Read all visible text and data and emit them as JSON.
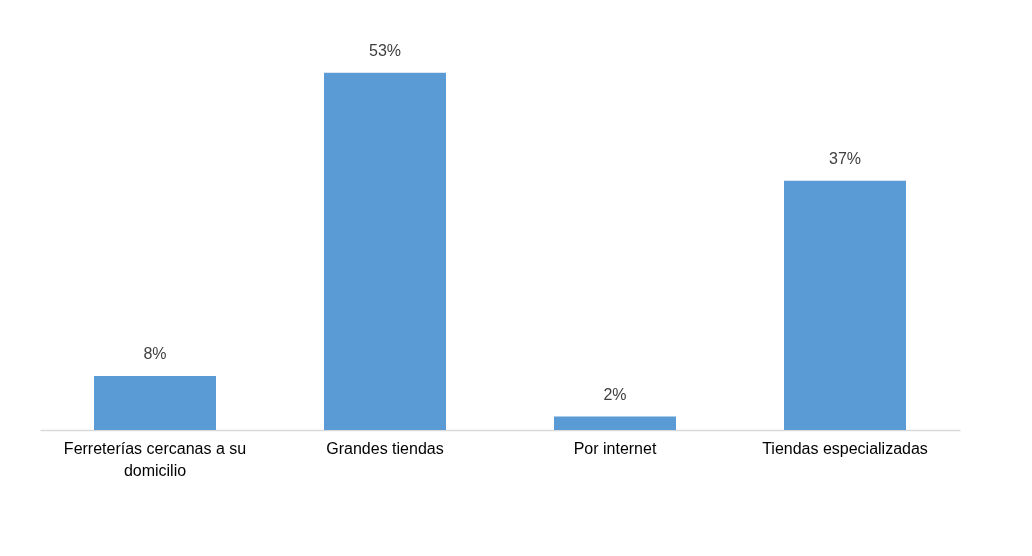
{
  "chart_data": {
    "type": "bar",
    "categories": [
      "Ferreterías cercanas a su domicilio",
      "Grandes tiendas",
      "Por internet",
      "Tiendas especializadas"
    ],
    "values": [
      8,
      53,
      2,
      37
    ],
    "value_labels": [
      "8%",
      "53%",
      "2%",
      "37%"
    ],
    "color": "#5b9bd5",
    "grid": false
  }
}
